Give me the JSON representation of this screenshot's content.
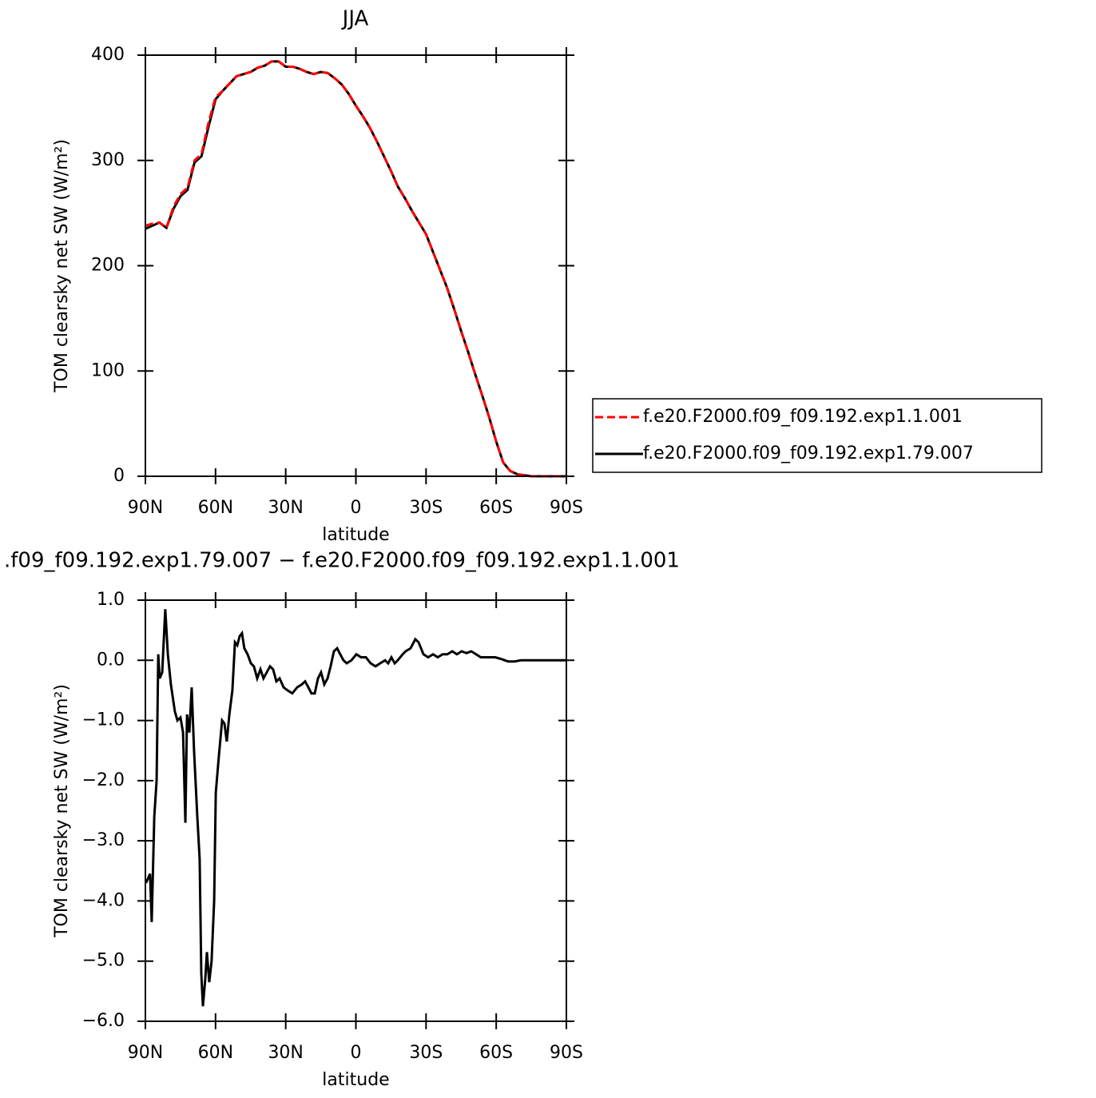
{
  "chart_data": [
    {
      "type": "line",
      "title": "JJA",
      "xlabel": "latitude",
      "ylabel": "TOM clearsky net SW (W/m²)",
      "x": [
        90,
        87,
        84,
        81,
        78,
        75,
        72,
        69,
        66,
        63,
        60,
        57,
        54,
        51,
        48,
        45,
        42,
        39,
        36,
        33,
        30,
        27,
        24,
        21,
        18,
        15,
        12,
        9,
        6,
        3,
        0,
        -3,
        -6,
        -9,
        -12,
        -15,
        -18,
        -21,
        -24,
        -27,
        -30,
        -33,
        -36,
        -39,
        -42,
        -45,
        -48,
        -51,
        -54,
        -57,
        -60,
        -63,
        -66,
        -69,
        -72,
        -75,
        -78,
        -81,
        -84,
        -87,
        -90
      ],
      "series": [
        {
          "name": "f.e20.F2000.f09_f09.192.exp1.1.001",
          "color": "#ff0000",
          "dash": true,
          "values": [
            238,
            240,
            241,
            236,
            256,
            268,
            274,
            300,
            306,
            336,
            360,
            366,
            373,
            380,
            382,
            384,
            388,
            390,
            394,
            394,
            389,
            389,
            387,
            384,
            382,
            384,
            383,
            378,
            372,
            363,
            352,
            342,
            331,
            318,
            304,
            290,
            275,
            264,
            252,
            241,
            230,
            213,
            196,
            179,
            159,
            138,
            118,
            97,
            77,
            56,
            33,
            13,
            5,
            2,
            1,
            0,
            0,
            0,
            0,
            0,
            0
          ]
        },
        {
          "name": "f.e20.F2000.f09_f09.192.exp1.79.007",
          "color": "#000000",
          "dash": false,
          "values": [
            235,
            238,
            241,
            236,
            254,
            266,
            272,
            298,
            304,
            332,
            358,
            366,
            373,
            380,
            382,
            384,
            388,
            390,
            394,
            394,
            389,
            389,
            387,
            384,
            382,
            384,
            383,
            378,
            372,
            363,
            352,
            342,
            331,
            318,
            304,
            290,
            275,
            264,
            252,
            241,
            230,
            213,
            196,
            179,
            159,
            138,
            118,
            97,
            77,
            56,
            33,
            13,
            5,
            2,
            1,
            0,
            0,
            0,
            0,
            0,
            0
          ]
        }
      ],
      "xlim": [
        90,
        -90
      ],
      "xticks": [
        {
          "value": 90,
          "label": "90N"
        },
        {
          "value": 60,
          "label": "60N"
        },
        {
          "value": 30,
          "label": "30N"
        },
        0,
        {
          "value": -30,
          "label": "30S"
        },
        {
          "value": -60,
          "label": "60S"
        },
        {
          "value": -90,
          "label": "90S"
        }
      ],
      "ylim": [
        0,
        400
      ],
      "yticks": [
        0,
        100,
        200,
        300,
        400
      ],
      "legend": "right"
    },
    {
      "type": "line",
      "title": ".f09_f09.192.exp1.79.007 − f.e20.F2000.f09_f09.192.exp1.1.001",
      "xlabel": "latitude",
      "ylabel": "TOM clearsky net SW (W/m²)",
      "x": [
        89.7,
        88.6,
        88,
        87.3,
        86.2,
        85.2,
        84.5,
        83.9,
        82.8,
        81.5,
        80.4,
        79.1,
        77.4,
        76.3,
        75,
        73.9,
        72.9,
        72.2,
        71.2,
        70.2,
        69.2,
        67.8,
        66.8,
        66.1,
        65.4,
        64.4,
        63.7,
        62.7,
        61.7,
        60.6,
        59.9,
        58.6,
        57.2,
        56.2,
        55.2,
        54.1,
        52.8,
        51.7,
        50.7,
        49.7,
        48.7,
        47.7,
        46.3,
        44.9,
        43.6,
        42.2,
        40.8,
        39.5,
        38.1,
        36.7,
        35.4,
        34,
        32.6,
        30.9,
        29.2,
        27.2,
        25.1,
        23.1,
        21.7,
        20.3,
        19,
        17.6,
        16.2,
        14.9,
        13.5,
        12.1,
        10.8,
        9.4,
        8,
        6.7,
        5.3,
        3.9,
        1.9,
        -0.2,
        -2.2,
        -4.3,
        -6.3,
        -8.4,
        -10.4,
        -12.5,
        -13.8,
        -15.2,
        -16.6,
        -17.9,
        -20,
        -21.3,
        -23.4,
        -25.4,
        -26.8,
        -28.9,
        -30.9,
        -33,
        -35,
        -37.1,
        -39.1,
        -41.2,
        -43.2,
        -45.2,
        -47.3,
        -49.3,
        -51.4,
        -53.4,
        -56.2,
        -59.6,
        -62.3,
        -65.1,
        -67.8,
        -70.5,
        -76.7,
        -83.5,
        -90
      ],
      "values": [
        -3.7,
        -3.6,
        -3.55,
        -4.35,
        -2.6,
        -2,
        0.1,
        -0.3,
        -0.2,
        0.85,
        0.1,
        -0.4,
        -0.85,
        -1,
        -0.95,
        -1.2,
        -2.7,
        -0.9,
        -1.2,
        -0.45,
        -1.5,
        -2.6,
        -3.3,
        -5.2,
        -5.75,
        -5.3,
        -4.85,
        -5.35,
        -5,
        -4,
        -2.2,
        -1.6,
        -1,
        -1.05,
        -1.35,
        -0.9,
        -0.5,
        0.3,
        0.25,
        0.4,
        0.45,
        0.2,
        0.1,
        -0.05,
        -0.1,
        -0.3,
        -0.15,
        -0.3,
        -0.2,
        -0.1,
        -0.15,
        -0.35,
        -0.3,
        -0.45,
        -0.5,
        -0.55,
        -0.45,
        -0.4,
        -0.35,
        -0.45,
        -0.55,
        -0.55,
        -0.3,
        -0.2,
        -0.4,
        -0.3,
        -0.1,
        0.15,
        0.2,
        0.1,
        0,
        -0.05,
        0,
        0.1,
        0.05,
        0.05,
        -0.05,
        -0.1,
        -0.05,
        0,
        -0.05,
        0.05,
        -0.05,
        0,
        0.1,
        0.15,
        0.2,
        0.35,
        0.3,
        0.1,
        0.05,
        0.1,
        0.05,
        0.1,
        0.1,
        0.15,
        0.1,
        0.15,
        0.12,
        0.15,
        0.1,
        0.05,
        0.05,
        0.05,
        0.02,
        -0.02,
        -0.02,
        0,
        0,
        0,
        0
      ],
      "color": "#000000",
      "xlim": [
        90,
        -90
      ],
      "xticks": [
        {
          "value": 90,
          "label": "90N"
        },
        {
          "value": 60,
          "label": "60N"
        },
        {
          "value": 30,
          "label": "30N"
        },
        0,
        {
          "value": -30,
          "label": "30S"
        },
        {
          "value": -60,
          "label": "60S"
        },
        {
          "value": -90,
          "label": "90S"
        }
      ],
      "ylim": [
        -6,
        1
      ],
      "yticks": [
        {
          "value": -6,
          "label": "−6.0"
        },
        {
          "value": -5,
          "label": "−5.0"
        },
        {
          "value": -4,
          "label": "−4.0"
        },
        {
          "value": -3,
          "label": "−3.0"
        },
        {
          "value": -2,
          "label": "−2.0"
        },
        {
          "value": -1,
          "label": "−1.0"
        },
        {
          "value": 0,
          "label": "0.0"
        },
        {
          "value": 1,
          "label": "1.0"
        }
      ]
    }
  ]
}
